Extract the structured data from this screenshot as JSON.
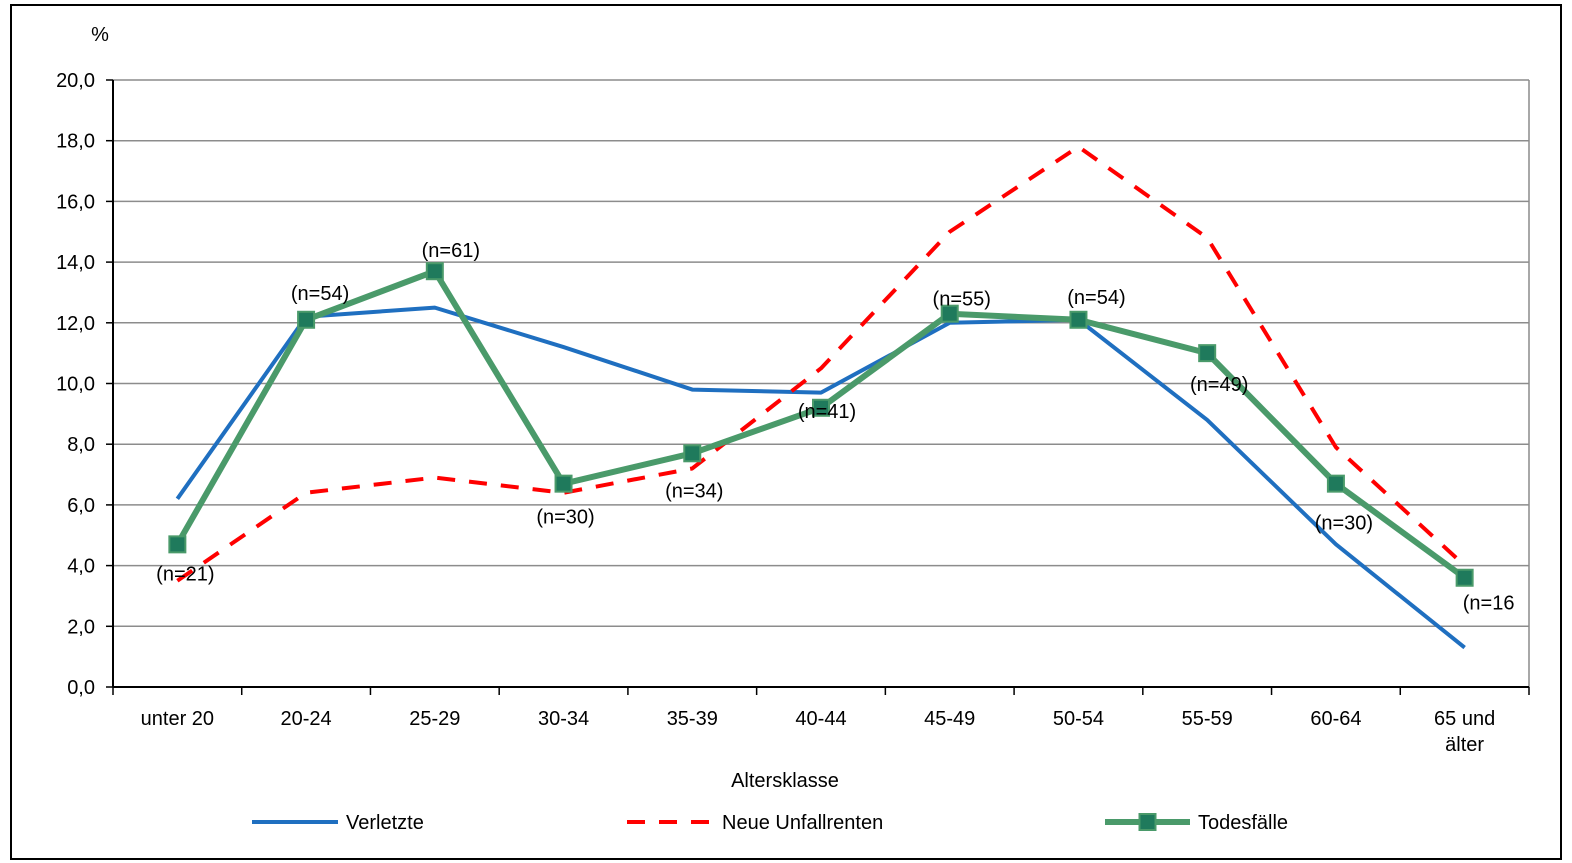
{
  "chart_data": {
    "type": "line",
    "title": "",
    "ylabel_unit": "%",
    "xlabel": "Altersklasse",
    "categories": [
      "unter 20",
      "20-24",
      "25-29",
      "30-34",
      "35-39",
      "40-44",
      "45-49",
      "50-54",
      "55-59",
      "60-64",
      "65 und\nälter"
    ],
    "ylim": [
      0,
      20
    ],
    "yticks": [
      "0,0",
      "2,0",
      "4,0",
      "6,0",
      "8,0",
      "10,0",
      "12,0",
      "14,0",
      "16,0",
      "18,0",
      "20,0"
    ],
    "grid": true,
    "legend_position": "bottom",
    "series": [
      {
        "name": "Verletzte",
        "color": "#1f6fc0",
        "style": "solid",
        "values": [
          6.2,
          12.2,
          12.5,
          11.2,
          9.8,
          9.7,
          12.0,
          12.1,
          8.8,
          4.7,
          1.3
        ]
      },
      {
        "name": "Neue Unfallrenten",
        "color": "#ff0000",
        "style": "dashed",
        "values": [
          3.5,
          6.4,
          6.9,
          6.4,
          7.2,
          10.5,
          15.0,
          17.8,
          14.8,
          7.9,
          4.0
        ]
      },
      {
        "name": "Todesfälle",
        "color": "#4a9a6a",
        "style": "solid-markers",
        "values": [
          4.7,
          12.1,
          13.7,
          6.7,
          7.7,
          9.2,
          12.3,
          12.1,
          11.0,
          6.7,
          3.6
        ],
        "point_labels": [
          "(n=21)",
          "(n=54)",
          "(n=61)",
          "(n=30)",
          "(n=34)",
          "(n=41)",
          "(n=55)",
          "(n=54)",
          "(n=49)",
          "(n=30)",
          "(n=16"
        ]
      }
    ]
  }
}
